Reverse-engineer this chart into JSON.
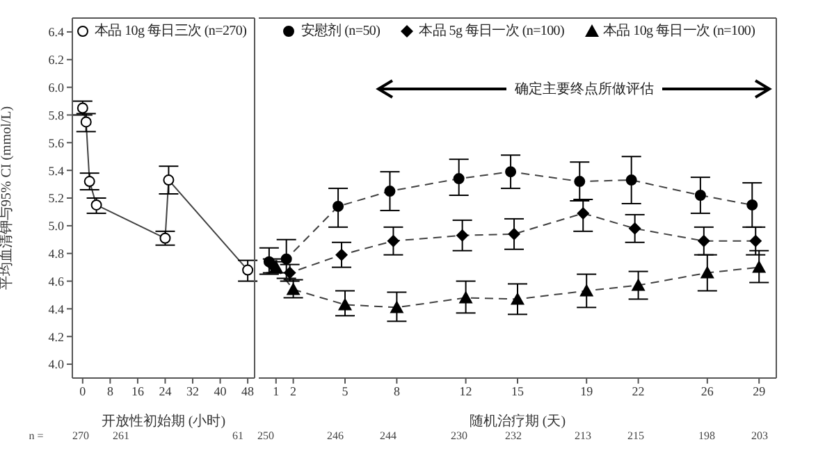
{
  "chart_data": [
    {
      "type": "line",
      "ylabel": "平均血清钾与95% CI (mmol/L)",
      "xlabel": "开放性初始期 (小时)",
      "xlim": [
        -3,
        50
      ],
      "xticks": [
        0,
        8,
        16,
        24,
        32,
        40,
        48
      ],
      "ylim": [
        3.9,
        6.5
      ],
      "yticks": [
        {
          "value": 4.0,
          "label": "4.0"
        },
        4.2,
        4.4,
        4.6,
        4.8,
        {
          "value": 5.0,
          "label": "5.0"
        },
        5.2,
        5.4,
        5.6,
        5.8,
        {
          "value": 6.0,
          "label": "6.0"
        },
        6.2,
        6.4
      ],
      "legend": "top left",
      "line_style": "solid",
      "marker": "circle",
      "series": [
        {
          "name": "本品 10g 每日三次 (n=270)",
          "color": "#000000",
          "x": [
            0,
            1,
            2,
            4,
            24,
            25,
            48
          ],
          "values": [
            5.85,
            5.75,
            5.32,
            5.15,
            4.91,
            5.33,
            4.68
          ],
          "errors": [
            [
              5.8,
              5.9
            ],
            [
              5.68,
              5.81
            ],
            [
              5.26,
              5.38
            ],
            [
              5.09,
              5.2
            ],
            [
              4.86,
              4.96
            ],
            [
              5.23,
              5.43
            ],
            [
              4.6,
              4.75
            ]
          ]
        }
      ],
      "annotations": [
        "n =",
        "270",
        "261",
        "61"
      ]
    },
    {
      "type": "line",
      "xlabel": "随机治疗期 (天)",
      "xlim": [
        0,
        30
      ],
      "xticks": [
        1,
        2,
        5,
        8,
        12,
        15,
        19,
        22,
        26,
        29
      ],
      "ylim": [
        3.9,
        6.5
      ],
      "tick_labels": "x",
      "legend": "top",
      "line_style": "dashed",
      "series": [
        {
          "name": "安慰剂 (n=50)",
          "color": "#000000",
          "marker": "circle",
          "x": [
            0.6,
            1.6,
            4.6,
            7.6,
            11.6,
            14.6,
            18.6,
            21.6,
            25.6,
            28.6
          ],
          "values": [
            4.74,
            4.76,
            5.14,
            5.25,
            5.34,
            5.39,
            5.32,
            5.33,
            5.22,
            5.15
          ],
          "errors": [
            [
              4.65,
              4.84
            ],
            [
              4.62,
              4.9
            ],
            [
              4.99,
              5.27
            ],
            [
              5.11,
              5.39
            ],
            [
              5.22,
              5.48
            ],
            [
              5.27,
              5.51
            ],
            [
              5.18,
              5.46
            ],
            [
              5.16,
              5.5
            ],
            [
              5.09,
              5.35
            ],
            [
              4.99,
              5.31
            ]
          ]
        },
        {
          "name": "本品 5g 每日一次 (n=100)",
          "color": "#000000",
          "marker": "diamond",
          "x": [
            0.8,
            1.8,
            4.8,
            7.8,
            11.8,
            14.8,
            18.8,
            21.8,
            25.8,
            28.8
          ],
          "values": [
            4.71,
            4.66,
            4.79,
            4.89,
            4.93,
            4.94,
            5.09,
            4.98,
            4.89,
            4.89
          ],
          "errors": [
            [
              4.66,
              4.76
            ],
            [
              4.6,
              4.72
            ],
            [
              4.7,
              4.88
            ],
            [
              4.79,
              4.99
            ],
            [
              4.82,
              5.04
            ],
            [
              4.83,
              5.05
            ],
            [
              4.96,
              5.19
            ],
            [
              4.88,
              5.08
            ],
            [
              4.79,
              4.99
            ],
            [
              4.79,
              4.99
            ]
          ]
        },
        {
          "name": "本品 10g 每日一次 (n=100)",
          "color": "#000000",
          "marker": "triangle",
          "x": [
            1,
            2,
            5,
            8,
            12,
            15,
            19,
            22,
            26,
            29
          ],
          "values": [
            4.7,
            4.54,
            4.43,
            4.41,
            4.48,
            4.47,
            4.53,
            4.57,
            4.66,
            4.7
          ],
          "errors": [
            [
              4.66,
              4.74
            ],
            [
              4.48,
              4.61
            ],
            [
              4.35,
              4.53
            ],
            [
              4.31,
              4.52
            ],
            [
              4.37,
              4.6
            ],
            [
              4.36,
              4.58
            ],
            [
              4.41,
              4.65
            ],
            [
              4.47,
              4.67
            ],
            [
              4.53,
              4.79
            ],
            [
              4.59,
              4.82
            ]
          ]
        }
      ],
      "annotations": [
        "确定主要终点所做评估",
        "250",
        "246",
        "244",
        "230",
        "232",
        "213",
        "215",
        "198",
        "203"
      ]
    }
  ]
}
